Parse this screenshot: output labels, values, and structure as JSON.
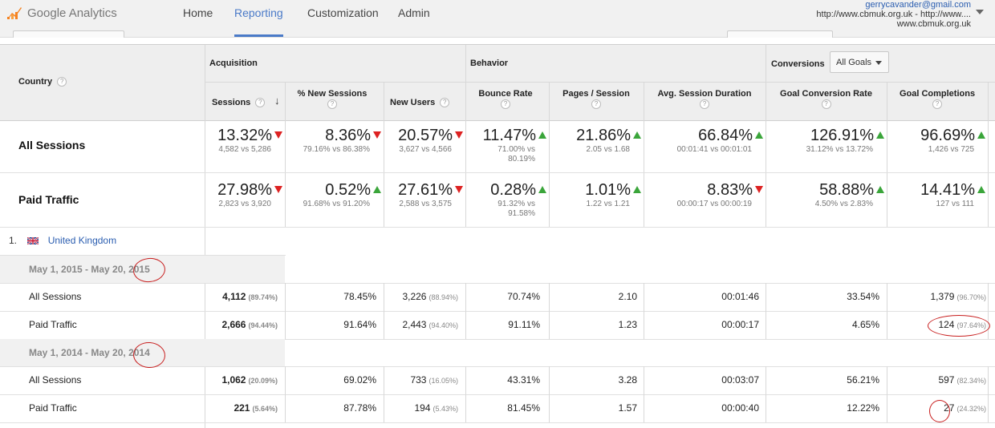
{
  "header": {
    "logo": "Google Analytics",
    "nav": [
      "Home",
      "Reporting",
      "Customization",
      "Admin"
    ],
    "account": {
      "email": "gerrycavander@gmail.com",
      "property_line1": "http://www.cbmuk.org.uk - http://www....",
      "property_line2": "www.cbmuk.org.uk"
    }
  },
  "table": {
    "country_header": "Country",
    "groups": {
      "acquisition": "Acquisition",
      "behavior": "Behavior",
      "conversions": "Conversions",
      "goal_select": "All Goals"
    },
    "columns": [
      "Sessions",
      "% New Sessions",
      "New Users",
      "Bounce Rate",
      "Pages / Session",
      "Avg. Session Duration",
      "Goal Conversion Rate",
      "Goal Completions"
    ],
    "summary": [
      {
        "label": "All Sessions",
        "values": [
          {
            "pct": "13.32%",
            "dir": "down",
            "cmp": "4,582 vs 5,286"
          },
          {
            "pct": "8.36%",
            "dir": "down",
            "cmp": "79.16% vs 86.38%"
          },
          {
            "pct": "20.57%",
            "dir": "down",
            "cmp": "3,627 vs 4,566"
          },
          {
            "pct": "11.47%",
            "dir": "up",
            "cmp": "71.00% vs",
            "cmp2": "80.19%"
          },
          {
            "pct": "21.86%",
            "dir": "up",
            "cmp": "2.05 vs 1.68"
          },
          {
            "pct": "66.84%",
            "dir": "up",
            "cmp": "00:01:41 vs 00:01:01"
          },
          {
            "pct": "126.91%",
            "dir": "up",
            "cmp": "31.12% vs 13.72%"
          },
          {
            "pct": "96.69%",
            "dir": "up",
            "cmp": "1,426 vs 725"
          }
        ]
      },
      {
        "label": "Paid Traffic",
        "values": [
          {
            "pct": "27.98%",
            "dir": "down",
            "cmp": "2,823 vs 3,920"
          },
          {
            "pct": "0.52%",
            "dir": "up",
            "cmp": "91.68% vs 91.20%"
          },
          {
            "pct": "27.61%",
            "dir": "down",
            "cmp": "2,588 vs 3,575"
          },
          {
            "pct": "0.28%",
            "dir": "up",
            "cmp": "91.32% vs",
            "cmp2": "91.58%"
          },
          {
            "pct": "1.01%",
            "dir": "up",
            "cmp": "1.22 vs 1.21"
          },
          {
            "pct": "8.83%",
            "dir": "down",
            "cmp": "00:00:17 vs 00:00:19"
          },
          {
            "pct": "58.88%",
            "dir": "up",
            "cmp": "4.50% vs 2.83%"
          },
          {
            "pct": "14.41%",
            "dir": "up",
            "cmp": "127 vs 111"
          }
        ]
      }
    ],
    "country": {
      "index": "1.",
      "name": "United Kingdom"
    },
    "periods": [
      {
        "range": "May 1, 2015 - May 20, 2015",
        "rows": [
          {
            "label": "All Sessions",
            "cells": [
              [
                "4,112",
                "(89.74%)"
              ],
              [
                "78.45%",
                ""
              ],
              [
                "3,226",
                "(88.94%)"
              ],
              [
                "70.74%",
                ""
              ],
              [
                "2.10",
                ""
              ],
              [
                "00:01:46",
                ""
              ],
              [
                "33.54%",
                ""
              ],
              [
                "1,379",
                "(96.70%)"
              ]
            ]
          },
          {
            "label": "Paid Traffic",
            "cells": [
              [
                "2,666",
                "(94.44%)"
              ],
              [
                "91.64%",
                ""
              ],
              [
                "2,443",
                "(94.40%)"
              ],
              [
                "91.11%",
                ""
              ],
              [
                "1.23",
                ""
              ],
              [
                "00:00:17",
                ""
              ],
              [
                "4.65%",
                ""
              ],
              [
                "124",
                "(97.64%)"
              ]
            ]
          }
        ]
      },
      {
        "range": "May 1, 2014 - May 20, 2014",
        "rows": [
          {
            "label": "All Sessions",
            "cells": [
              [
                "1,062",
                "(20.09%)"
              ],
              [
                "69.02%",
                ""
              ],
              [
                "733",
                "(16.05%)"
              ],
              [
                "43.31%",
                ""
              ],
              [
                "3.28",
                ""
              ],
              [
                "00:03:07",
                ""
              ],
              [
                "56.21%",
                ""
              ],
              [
                "597",
                "(82.34%)"
              ]
            ]
          },
          {
            "label": "Paid Traffic",
            "cells": [
              [
                "221",
                "(5.64%)"
              ],
              [
                "87.78%",
                ""
              ],
              [
                "194",
                "(5.43%)"
              ],
              [
                "81.45%",
                ""
              ],
              [
                "1.57",
                ""
              ],
              [
                "00:00:40",
                ""
              ],
              [
                "12.22%",
                ""
              ],
              [
                "27",
                "(24.32%)"
              ]
            ]
          }
        ]
      }
    ]
  }
}
